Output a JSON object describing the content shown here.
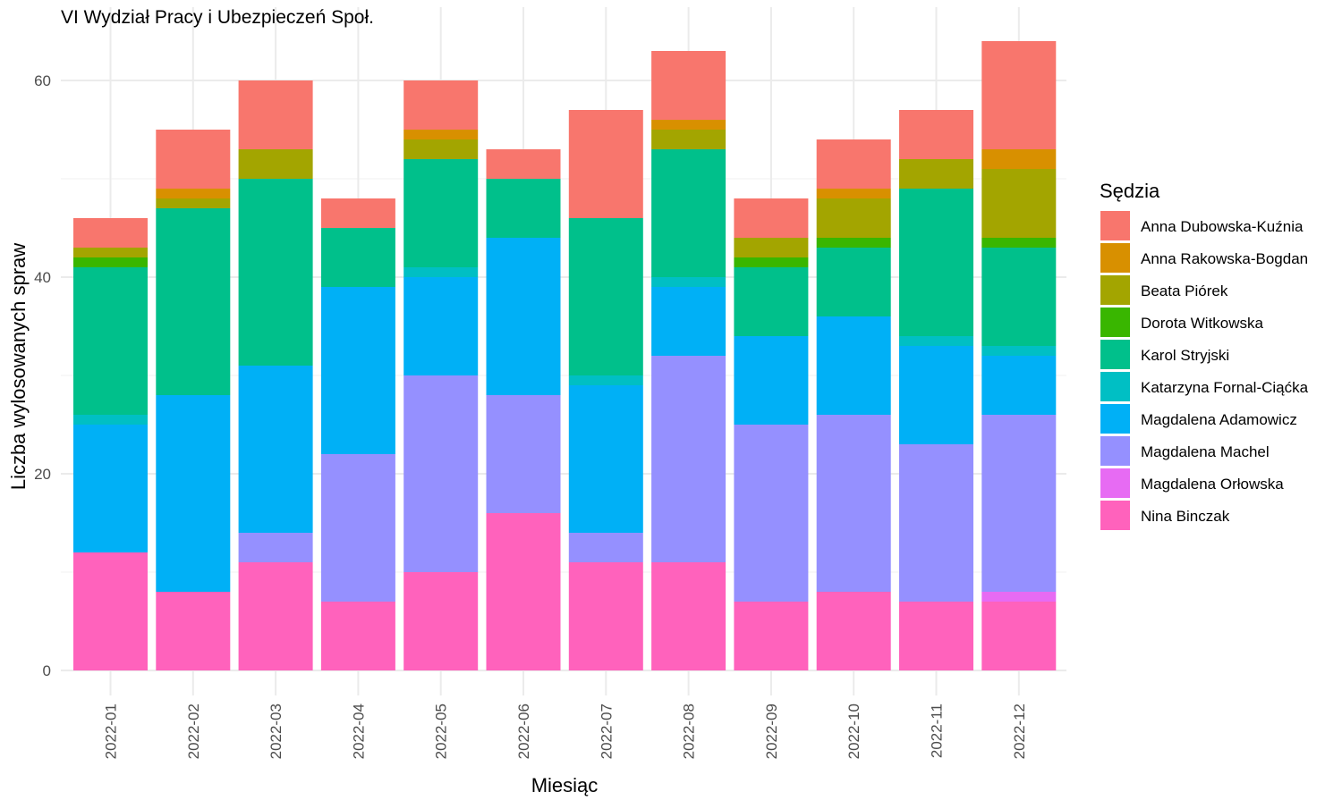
{
  "chart_data": {
    "type": "bar",
    "stacked": true,
    "title": "VI Wydział Pracy i Ubezpieczeń Społ.",
    "xlabel": "Miesiąc",
    "ylabel": "Liczba wylosowanych spraw",
    "ylim": [
      0,
      66
    ],
    "y_ticks": [
      0,
      20,
      40,
      60
    ],
    "grid": true,
    "legend_title": "Sędzia",
    "legend_position": "right",
    "categories": [
      "2022-01",
      "2022-02",
      "2022-03",
      "2022-04",
      "2022-05",
      "2022-06",
      "2022-07",
      "2022-08",
      "2022-09",
      "2022-10",
      "2022-11",
      "2022-12"
    ],
    "series": [
      {
        "name": "Nina Binczak",
        "color": "#FF62BC",
        "values": [
          12,
          8,
          11,
          7,
          10,
          16,
          11,
          11,
          7,
          8,
          7,
          7
        ]
      },
      {
        "name": "Magdalena Orłowska",
        "color": "#E76BF3",
        "values": [
          0,
          0,
          0,
          0,
          0,
          0,
          0,
          0,
          0,
          0,
          0,
          1
        ]
      },
      {
        "name": "Magdalena Machel",
        "color": "#9590FF",
        "values": [
          0,
          0,
          3,
          15,
          20,
          12,
          3,
          21,
          18,
          18,
          16,
          18
        ]
      },
      {
        "name": "Magdalena Adamowicz",
        "color": "#00B0F6",
        "values": [
          13,
          20,
          17,
          17,
          10,
          16,
          15,
          7,
          9,
          10,
          10,
          6
        ]
      },
      {
        "name": "Katarzyna Fornal-Ciąćka",
        "color": "#00BFC4",
        "values": [
          1,
          0,
          0,
          0,
          1,
          0,
          1,
          1,
          0,
          0,
          1,
          1
        ]
      },
      {
        "name": "Karol Stryjski",
        "color": "#00C08B",
        "values": [
          15,
          19,
          19,
          6,
          11,
          6,
          16,
          13,
          7,
          7,
          15,
          10
        ]
      },
      {
        "name": "Dorota Witkowska",
        "color": "#39B600",
        "values": [
          1,
          0,
          0,
          0,
          0,
          0,
          0,
          0,
          1,
          1,
          0,
          1
        ]
      },
      {
        "name": "Beata Piórek",
        "color": "#A3A500",
        "values": [
          1,
          1,
          3,
          0,
          2,
          0,
          0,
          2,
          2,
          4,
          3,
          7
        ]
      },
      {
        "name": "Anna Rakowska-Bogdan",
        "color": "#D89000",
        "values": [
          0,
          1,
          0,
          0,
          1,
          0,
          0,
          1,
          0,
          1,
          0,
          2
        ]
      },
      {
        "name": "Anna Dubowska-Kuźnia",
        "color": "#F8766D",
        "values": [
          3,
          6,
          7,
          3,
          5,
          3,
          11,
          7,
          4,
          5,
          5,
          11
        ]
      }
    ],
    "legend_order": [
      "Anna Dubowska-Kuźnia",
      "Anna Rakowska-Bogdan",
      "Beata Piórek",
      "Dorota Witkowska",
      "Karol Stryjski",
      "Katarzyna Fornal-Ciąćka",
      "Magdalena Adamowicz",
      "Magdalena Machel",
      "Magdalena Orłowska",
      "Nina Binczak"
    ]
  }
}
